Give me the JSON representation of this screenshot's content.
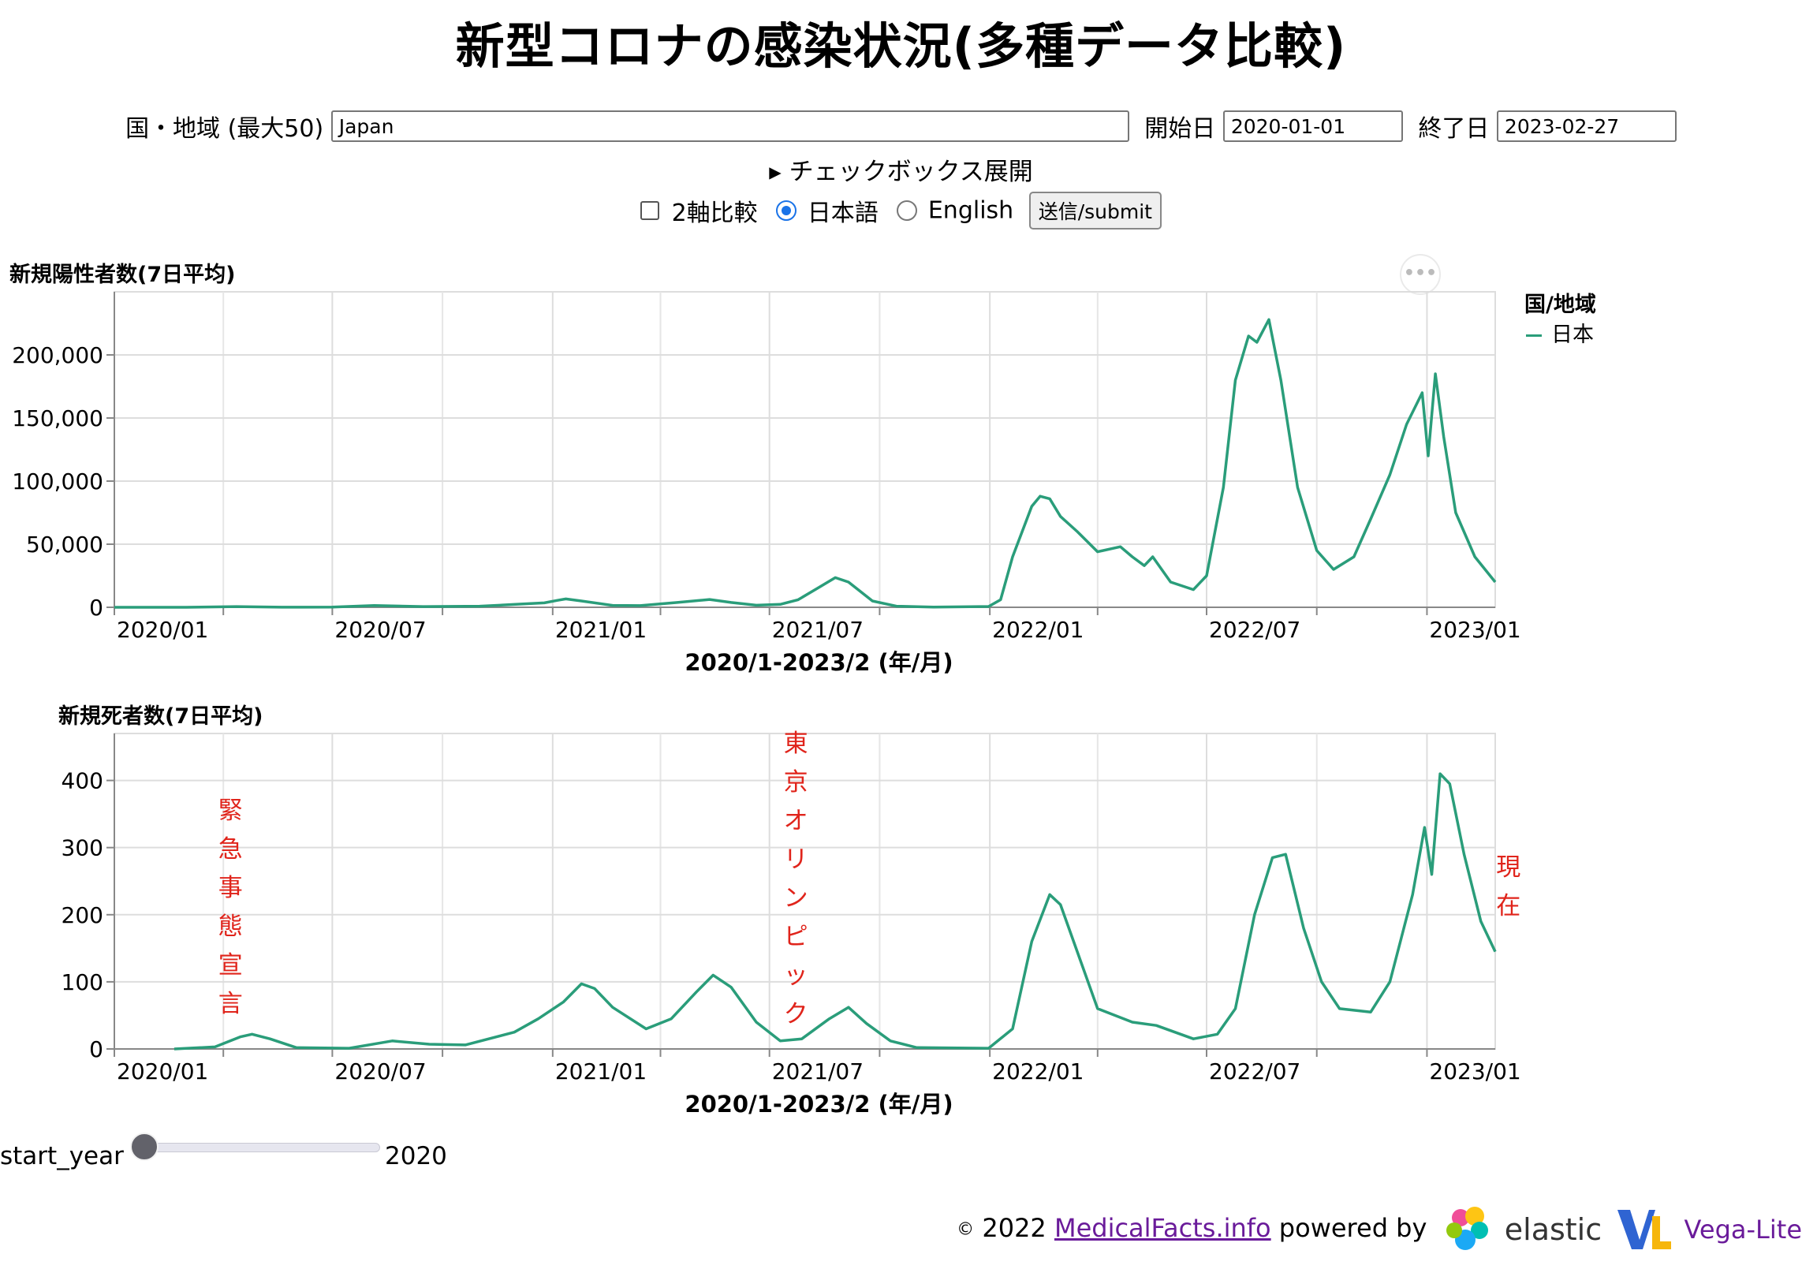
{
  "page_title": "新型コロナの感染状況(多種データ比較)",
  "form": {
    "country_label": "国・地域 (最大50)",
    "country_value": "Japan",
    "start_label": "開始日",
    "start_value": "2020-01-01",
    "end_label": "終了日",
    "end_value": "2023-02-27",
    "expand_label": "▸ チェックボックス展開",
    "dual_axis_label": "2軸比較",
    "lang_ja_label": "日本語",
    "lang_en_label": "English",
    "submit_label": "送信/submit"
  },
  "menu_icon": "ellipsis-icon",
  "legend": {
    "title": "国/地域",
    "entries": [
      {
        "name": "日本",
        "color": "#2a9d7a"
      }
    ]
  },
  "slider": {
    "label": "start_year",
    "value": 2020
  },
  "footer": {
    "copyright": "2022",
    "link_text": "MedicalFacts.info",
    "powered_by": "powered by",
    "elastic": "elastic",
    "vega": "Vega-Lite"
  },
  "chart_data": [
    {
      "type": "line",
      "title": "新規陽性者数(7日平均)",
      "xlabel": "2020/1-2023/2 (年/月)",
      "ylabel": "",
      "x_range": [
        "2020-01-01",
        "2023-02-27"
      ],
      "ylim": [
        0,
        250000
      ],
      "y_ticks": [
        0,
        50000,
        100000,
        150000,
        200000
      ],
      "y_tick_labels": [
        "0",
        "50,000",
        "100,000",
        "150,000",
        "200,000"
      ],
      "x_ticks": [
        "2020-01-01",
        "2020-07-01",
        "2021-01-01",
        "2021-07-01",
        "2022-01-01",
        "2022-07-01",
        "2023-01-01"
      ],
      "x_tick_labels": [
        "2020/01",
        "2020/07",
        "2021/01",
        "2021/07",
        "2022/01",
        "2022/07",
        "2023/01"
      ],
      "grid": true,
      "series": [
        {
          "name": "日本",
          "color": "#2a9d7a",
          "points": [
            [
              "2020-01-01",
              0
            ],
            [
              "2020-03-01",
              20
            ],
            [
              "2020-04-12",
              580
            ],
            [
              "2020-05-20",
              60
            ],
            [
              "2020-07-01",
              200
            ],
            [
              "2020-08-05",
              1350
            ],
            [
              "2020-09-15",
              550
            ],
            [
              "2020-11-01",
              900
            ],
            [
              "2020-12-01",
              2300
            ],
            [
              "2020-12-25",
              3500
            ],
            [
              "2021-01-05",
              5500
            ],
            [
              "2021-01-12",
              6600
            ],
            [
              "2021-01-25",
              5000
            ],
            [
              "2021-02-20",
              1500
            ],
            [
              "2021-03-15",
              1300
            ],
            [
              "2021-04-15",
              3800
            ],
            [
              "2021-05-12",
              6200
            ],
            [
              "2021-05-30",
              3800
            ],
            [
              "2021-06-20",
              1600
            ],
            [
              "2021-07-10",
              2300
            ],
            [
              "2021-07-25",
              6000
            ],
            [
              "2021-08-10",
              15000
            ],
            [
              "2021-08-25",
              23500
            ],
            [
              "2021-09-05",
              20000
            ],
            [
              "2021-09-25",
              5000
            ],
            [
              "2021-10-15",
              900
            ],
            [
              "2021-11-15",
              150
            ],
            [
              "2021-12-31",
              600
            ],
            [
              "2022-01-10",
              6000
            ],
            [
              "2022-01-20",
              40000
            ],
            [
              "2022-02-05",
              80000
            ],
            [
              "2022-02-12",
              88000
            ],
            [
              "2022-02-20",
              86000
            ],
            [
              "2022-03-01",
              72000
            ],
            [
              "2022-03-15",
              60000
            ],
            [
              "2022-04-01",
              44000
            ],
            [
              "2022-04-20",
              48000
            ],
            [
              "2022-04-30",
              40000
            ],
            [
              "2022-05-10",
              33000
            ],
            [
              "2022-05-17",
              40000
            ],
            [
              "2022-06-01",
              20000
            ],
            [
              "2022-06-20",
              14000
            ],
            [
              "2022-07-01",
              25000
            ],
            [
              "2022-07-15",
              95000
            ],
            [
              "2022-07-25",
              180000
            ],
            [
              "2022-08-05",
              215000
            ],
            [
              "2022-08-12",
              210000
            ],
            [
              "2022-08-22",
              228000
            ],
            [
              "2022-09-01",
              180000
            ],
            [
              "2022-09-15",
              95000
            ],
            [
              "2022-10-01",
              45000
            ],
            [
              "2022-10-15",
              30000
            ],
            [
              "2022-11-01",
              40000
            ],
            [
              "2022-11-15",
              70000
            ],
            [
              "2022-12-01",
              105000
            ],
            [
              "2022-12-15",
              145000
            ],
            [
              "2022-12-28",
              170000
            ],
            [
              "2023-01-02",
              120000
            ],
            [
              "2023-01-08",
              185000
            ],
            [
              "2023-01-15",
              135000
            ],
            [
              "2023-01-25",
              75000
            ],
            [
              "2023-02-10",
              40000
            ],
            [
              "2023-02-27",
              20000
            ]
          ]
        }
      ]
    },
    {
      "type": "line",
      "title": "新規死者数(7日平均)",
      "xlabel": "2020/1-2023/2 (年/月)",
      "ylabel": "",
      "x_range": [
        "2020-01-01",
        "2023-02-27"
      ],
      "ylim": [
        0,
        470
      ],
      "y_ticks": [
        0,
        100,
        200,
        300,
        400
      ],
      "y_tick_labels": [
        "0",
        "100",
        "200",
        "300",
        "400"
      ],
      "x_ticks": [
        "2020-01-01",
        "2020-07-01",
        "2021-01-01",
        "2021-07-01",
        "2022-01-01",
        "2022-07-01",
        "2023-01-01"
      ],
      "x_tick_labels": [
        "2020/01",
        "2020/07",
        "2021/01",
        "2021/07",
        "2022/01",
        "2022/07",
        "2023/01"
      ],
      "grid": true,
      "annotations": [
        {
          "text": "緊急事態宣言",
          "date": "2020-04-07",
          "color": "#e0241b"
        },
        {
          "text": "東京オリンピック",
          "date": "2021-07-23",
          "color": "#e0241b"
        },
        {
          "text": "現在",
          "date": "2023-03-10",
          "color": "#e0241b"
        }
      ],
      "series": [
        {
          "name": "日本",
          "color": "#2a9d7a",
          "points": [
            [
              "2020-02-20",
              0
            ],
            [
              "2020-03-25",
              3
            ],
            [
              "2020-04-15",
              18
            ],
            [
              "2020-04-25",
              22
            ],
            [
              "2020-05-10",
              15
            ],
            [
              "2020-06-01",
              2
            ],
            [
              "2020-07-15",
              1
            ],
            [
              "2020-08-20",
              12
            ],
            [
              "2020-09-20",
              7
            ],
            [
              "2020-10-20",
              6
            ],
            [
              "2020-11-30",
              25
            ],
            [
              "2020-12-20",
              45
            ],
            [
              "2021-01-10",
              70
            ],
            [
              "2021-01-25",
              97
            ],
            [
              "2021-02-05",
              90
            ],
            [
              "2021-02-20",
              62
            ],
            [
              "2021-03-20",
              30
            ],
            [
              "2021-04-10",
              45
            ],
            [
              "2021-05-01",
              85
            ],
            [
              "2021-05-15",
              110
            ],
            [
              "2021-05-30",
              92
            ],
            [
              "2021-06-20",
              40
            ],
            [
              "2021-07-10",
              12
            ],
            [
              "2021-07-28",
              15
            ],
            [
              "2021-08-20",
              45
            ],
            [
              "2021-09-05",
              62
            ],
            [
              "2021-09-20",
              38
            ],
            [
              "2021-10-10",
              12
            ],
            [
              "2021-11-01",
              2
            ],
            [
              "2021-12-31",
              1
            ],
            [
              "2022-01-20",
              30
            ],
            [
              "2022-02-05",
              160
            ],
            [
              "2022-02-20",
              230
            ],
            [
              "2022-03-01",
              215
            ],
            [
              "2022-03-15",
              145
            ],
            [
              "2022-04-01",
              60
            ],
            [
              "2022-04-30",
              40
            ],
            [
              "2022-05-20",
              35
            ],
            [
              "2022-06-20",
              15
            ],
            [
              "2022-07-10",
              22
            ],
            [
              "2022-07-25",
              60
            ],
            [
              "2022-08-10",
              200
            ],
            [
              "2022-08-25",
              285
            ],
            [
              "2022-09-05",
              290
            ],
            [
              "2022-09-20",
              180
            ],
            [
              "2022-10-05",
              100
            ],
            [
              "2022-10-20",
              60
            ],
            [
              "2022-11-15",
              55
            ],
            [
              "2022-12-01",
              100
            ],
            [
              "2022-12-20",
              230
            ],
            [
              "2022-12-30",
              330
            ],
            [
              "2023-01-05",
              260
            ],
            [
              "2023-01-12",
              410
            ],
            [
              "2023-01-20",
              395
            ],
            [
              "2023-02-01",
              290
            ],
            [
              "2023-02-15",
              190
            ],
            [
              "2023-02-27",
              145
            ]
          ]
        }
      ]
    }
  ]
}
